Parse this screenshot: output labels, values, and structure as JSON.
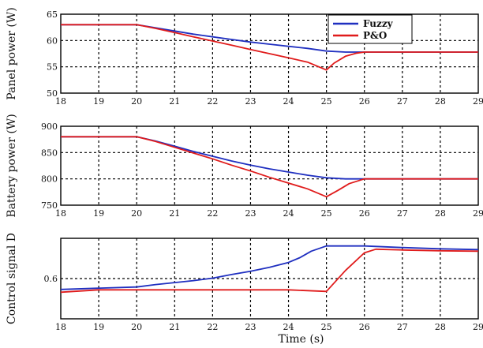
{
  "chart_data": [
    {
      "type": "line",
      "ylabel": "Panel power (W)",
      "xlim": [
        18,
        29
      ],
      "ylim": [
        50,
        65
      ],
      "xticks": [
        "18",
        "19",
        "20",
        "21",
        "22",
        "23",
        "24",
        "25",
        "26",
        "27",
        "28",
        "29"
      ],
      "yticks": [
        "50",
        "55",
        "60",
        "65"
      ],
      "grid": true,
      "legend": "top-right",
      "series": [
        {
          "name": "Fuzzy",
          "color": "#1f2fc0",
          "x": [
            18,
            20,
            20.5,
            21,
            21.5,
            22,
            22.5,
            23,
            23.5,
            24,
            24.5,
            25,
            25.5,
            26,
            29
          ],
          "y": [
            63,
            63,
            62.4,
            61.8,
            61.2,
            60.7,
            60.2,
            59.7,
            59.3,
            58.9,
            58.5,
            58,
            57.8,
            57.8,
            57.8
          ]
        },
        {
          "name": "P&O",
          "color": "#e01b1b",
          "x": [
            18,
            20,
            20.5,
            21,
            21.5,
            22,
            22.5,
            23,
            23.5,
            24,
            24.5,
            25,
            25.2,
            25.5,
            25.8,
            26,
            29
          ],
          "y": [
            63,
            63,
            62.3,
            61.5,
            60.7,
            59.9,
            59.1,
            58.3,
            57.5,
            56.7,
            55.9,
            54.4,
            55.7,
            57,
            57.6,
            57.8,
            57.8
          ]
        }
      ]
    },
    {
      "type": "line",
      "ylabel": "Battery power (W)",
      "xlim": [
        18,
        29
      ],
      "ylim": [
        750,
        900
      ],
      "xticks": [
        "18",
        "19",
        "20",
        "21",
        "22",
        "23",
        "24",
        "25",
        "26",
        "27",
        "28",
        "29"
      ],
      "yticks": [
        "750",
        "800",
        "850",
        "900"
      ],
      "grid": true,
      "series": [
        {
          "name": "Fuzzy",
          "color": "#1f2fc0",
          "x": [
            18,
            20,
            20.5,
            21,
            21.5,
            22,
            22.5,
            23,
            23.5,
            24,
            24.5,
            25,
            25.5,
            26,
            29
          ],
          "y": [
            880,
            880,
            872,
            862,
            852,
            843,
            834,
            826,
            819,
            813,
            807,
            802,
            800,
            800,
            800
          ]
        },
        {
          "name": "P&O",
          "color": "#e01b1b",
          "x": [
            18,
            20,
            20.5,
            21,
            21.5,
            22,
            22.5,
            23,
            23.5,
            24,
            24.5,
            25,
            25.3,
            25.6,
            26,
            29
          ],
          "y": [
            880,
            880,
            871,
            860,
            849,
            838,
            826,
            815,
            803,
            792,
            781,
            766,
            778,
            791,
            800,
            800
          ]
        }
      ]
    },
    {
      "type": "line",
      "ylabel": "Control signal D",
      "xlabel": "Time (s)",
      "xlim": [
        18,
        29
      ],
      "ylim": [
        0.5,
        0.7
      ],
      "xticks": [
        "18",
        "19",
        "20",
        "21",
        "22",
        "23",
        "24",
        "25",
        "26",
        "27",
        "28",
        "29"
      ],
      "yticks": [
        "0.6"
      ],
      "grid": true,
      "series": [
        {
          "name": "Fuzzy",
          "color": "#1f2fc0",
          "x": [
            18,
            19,
            20,
            20.5,
            21,
            21.5,
            22,
            22.5,
            23,
            23.5,
            24,
            24.3,
            24.6,
            25,
            25.5,
            26,
            27,
            28,
            29
          ],
          "y": [
            0.573,
            0.576,
            0.579,
            0.585,
            0.59,
            0.595,
            0.601,
            0.61,
            0.618,
            0.628,
            0.64,
            0.652,
            0.668,
            0.681,
            0.681,
            0.681,
            0.677,
            0.674,
            0.672
          ]
        },
        {
          "name": "P&O",
          "color": "#e01b1b",
          "x": [
            18,
            19,
            20,
            21,
            22,
            23,
            24,
            25,
            25.5,
            26,
            26.3,
            27,
            28,
            29
          ],
          "y": [
            0.566,
            0.572,
            0.572,
            0.572,
            0.572,
            0.572,
            0.572,
            0.568,
            0.62,
            0.664,
            0.673,
            0.671,
            0.669,
            0.668
          ]
        }
      ]
    }
  ]
}
